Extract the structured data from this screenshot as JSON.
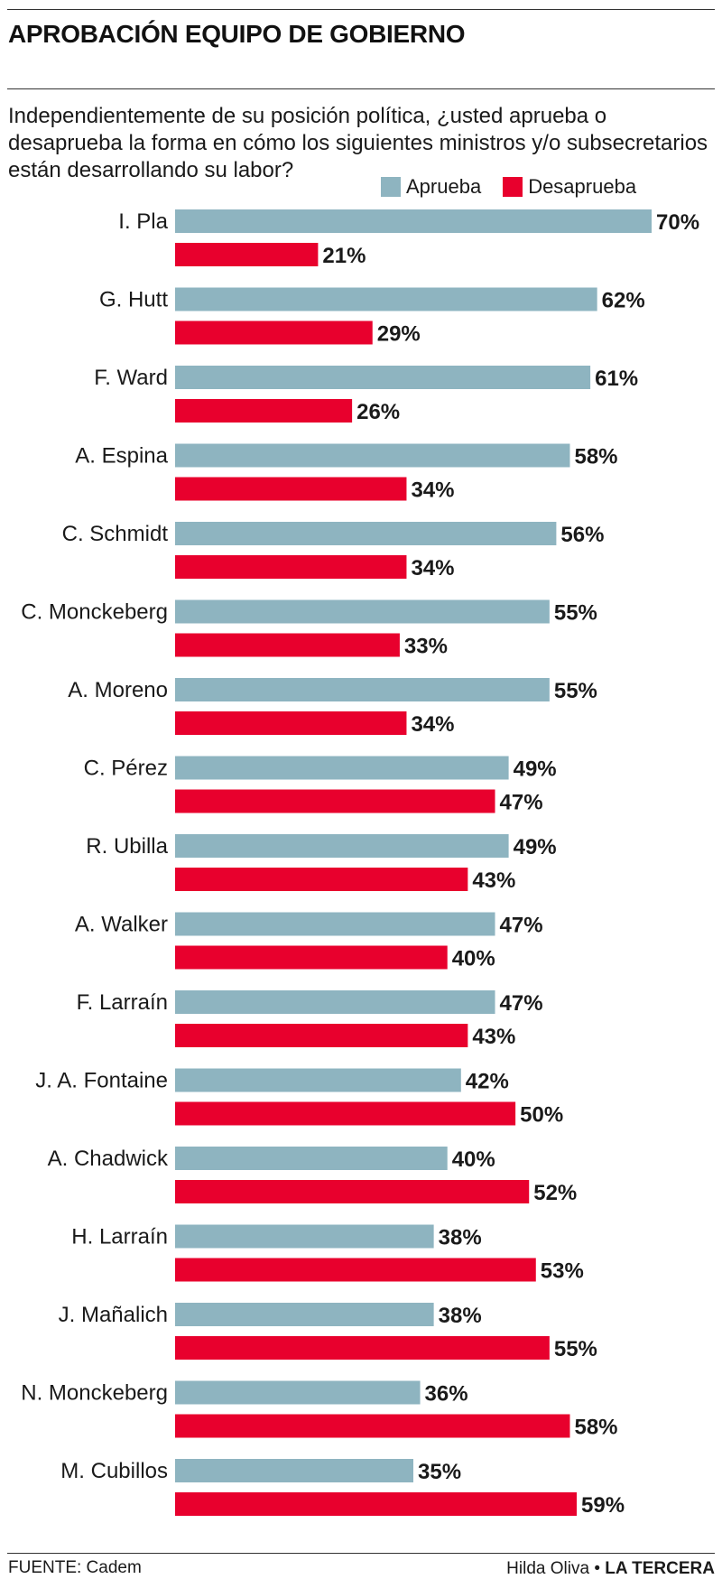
{
  "header": {
    "title": "APROBACIÓN EQUIPO DE GOBIERNO",
    "question": "Independientemente de su posición política, ¿usted aprueba o desaprueba la forma en cómo los siguientes ministros y/o subsecretarios están desarrollando su labor?"
  },
  "legend": {
    "approve": "Aprueba",
    "disapprove": "Desaprueba"
  },
  "colors": {
    "approve": "#8eb4c0",
    "disapprove": "#e8002d",
    "text": "#1a1a1a"
  },
  "chart_data": {
    "type": "bar",
    "orientation": "horizontal",
    "value_suffix": "%",
    "xlim": [
      0,
      70
    ],
    "grid": false,
    "legend_position": "top-right",
    "categories": [
      "I. Pla",
      "G. Hutt",
      "F. Ward",
      "A. Espina",
      "C. Schmidt",
      "C. Monckeberg",
      "A. Moreno",
      "C. Pérez",
      "R. Ubilla",
      "A. Walker",
      "F. Larraín",
      "J. A. Fontaine",
      "A. Chadwick",
      "H. Larraín",
      "J. Mañalich",
      "N. Monckeberg",
      "M. Cubillos"
    ],
    "series": [
      {
        "name": "Aprueba",
        "values": [
          70,
          62,
          61,
          58,
          56,
          55,
          55,
          49,
          49,
          47,
          47,
          42,
          40,
          38,
          38,
          36,
          35
        ]
      },
      {
        "name": "Desaprueba",
        "values": [
          21,
          29,
          26,
          34,
          34,
          33,
          34,
          47,
          43,
          40,
          43,
          50,
          52,
          53,
          55,
          58,
          59
        ]
      }
    ]
  },
  "footer": {
    "source": "FUENTE: Cadem",
    "author": "Hilda Oliva",
    "separator": "•",
    "brand": "LA TERCERA"
  }
}
